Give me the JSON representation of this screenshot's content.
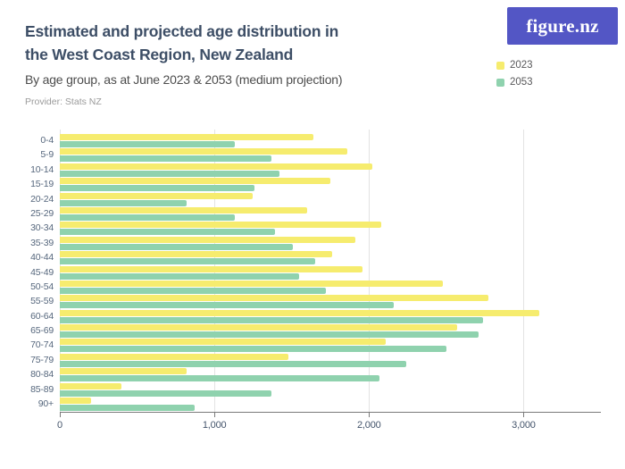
{
  "header": {
    "title_line1": "Estimated and projected age distribution in",
    "title_line2": "the West Coast Region, New Zealand",
    "subtitle": "By age group, as at June 2023 & 2053 (medium projection)",
    "provider": "Provider: Stats NZ",
    "logo_text": "figure.nz"
  },
  "legend": {
    "items": [
      {
        "label": "2023",
        "color": "#f6ec6e"
      },
      {
        "label": "2053",
        "color": "#8fd2ae"
      }
    ]
  },
  "colors": {
    "series_2023": "#f6ec6e",
    "series_2053": "#8fd2ae",
    "logo_background": "#5356c5",
    "title_text": "#3d4e66",
    "axis_text": "#56677d",
    "gridline": "#e3e3e3",
    "axis_line": "#7a7a7a"
  },
  "chart_data": {
    "type": "bar",
    "orientation": "horizontal",
    "title": "Estimated and projected age distribution in the West Coast Region, New Zealand",
    "subtitle": "By age group, as at June 2023 & 2053 (medium projection)",
    "categories": [
      "0-4",
      "5-9",
      "10-14",
      "15-19",
      "20-24",
      "25-29",
      "30-34",
      "35-39",
      "40-44",
      "45-49",
      "50-54",
      "55-59",
      "60-64",
      "65-69",
      "70-74",
      "75-79",
      "80-84",
      "85-89",
      "90+"
    ],
    "series": [
      {
        "name": "2023",
        "color": "#f6ec6e",
        "values": [
          1640,
          1860,
          2020,
          1750,
          1250,
          1600,
          2080,
          1910,
          1760,
          1960,
          2480,
          2770,
          3100,
          2570,
          2110,
          1480,
          820,
          400,
          200
        ]
      },
      {
        "name": "2053",
        "color": "#8fd2ae",
        "values": [
          1130,
          1370,
          1420,
          1260,
          820,
          1130,
          1390,
          1510,
          1650,
          1550,
          1720,
          2160,
          2740,
          2710,
          2500,
          2240,
          2070,
          1370,
          870
        ]
      }
    ],
    "xlabel": "",
    "ylabel": "",
    "xlim": [
      0,
      3500
    ],
    "x_ticks": [
      {
        "value": 0,
        "label": "0"
      },
      {
        "value": 1000,
        "label": "1,000"
      },
      {
        "value": 2000,
        "label": "2,000"
      },
      {
        "value": 3000,
        "label": "3,000"
      }
    ],
    "grid": "vertical",
    "legend_position": "top-right"
  }
}
